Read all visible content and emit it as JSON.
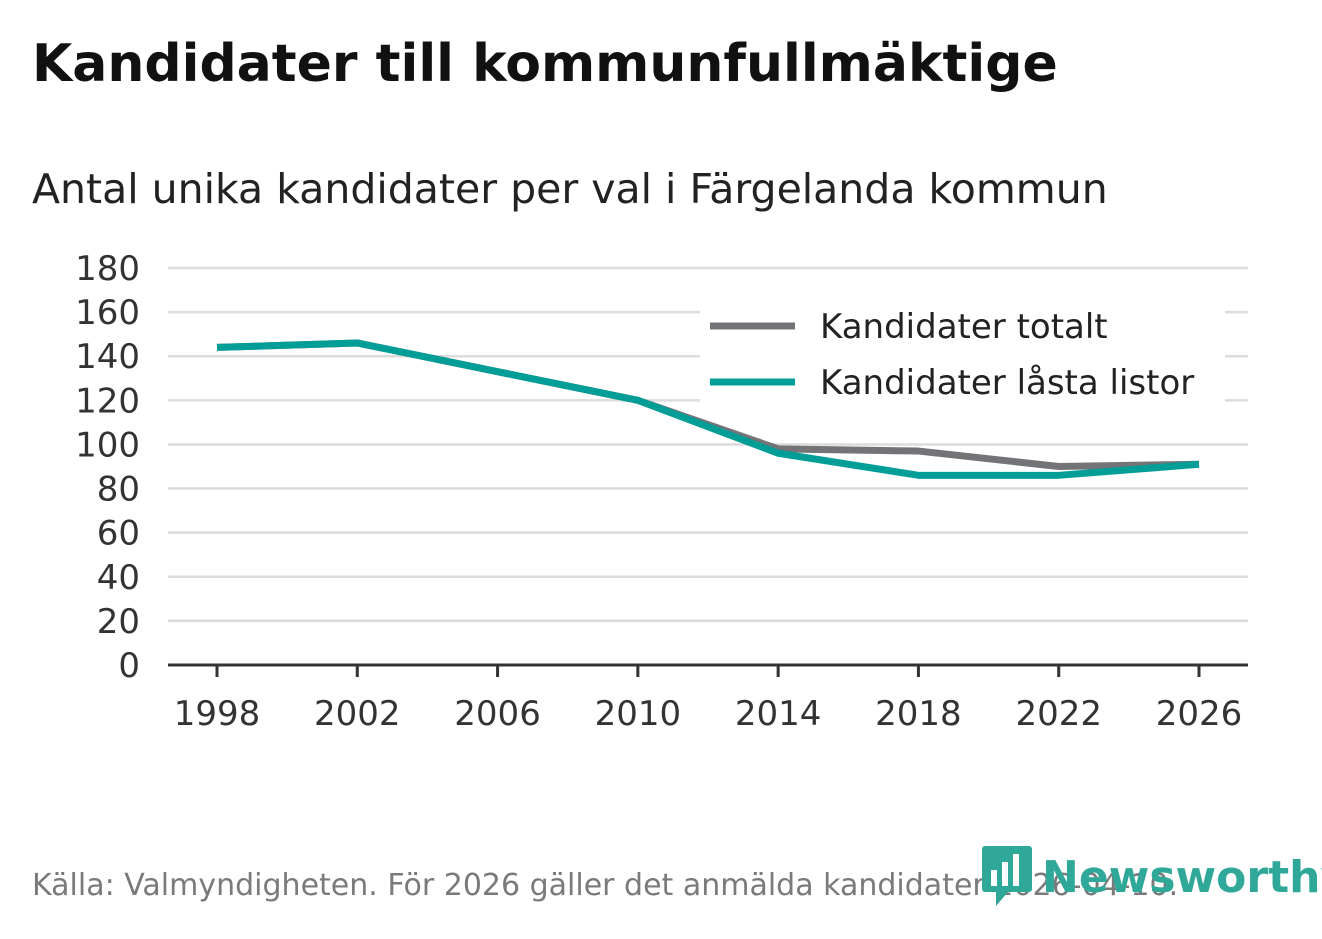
{
  "chart_data": {
    "type": "line",
    "title": "Kandidater till kommunfullmäktige",
    "subtitle": "Antal unika kandidater per val i Färgelanda kommun",
    "xlabel": "",
    "ylabel": "",
    "x": [
      "1998",
      "2002",
      "2006",
      "2010",
      "2014",
      "2018",
      "2022",
      "2026"
    ],
    "ylim": [
      0,
      180
    ],
    "yticks": [
      0,
      20,
      40,
      60,
      80,
      100,
      120,
      140,
      160,
      180
    ],
    "grid": true,
    "legend_position": "top-right",
    "series": [
      {
        "name": "Kandidater totalt",
        "color": "#747378",
        "values": [
          144,
          146,
          133,
          120,
          98,
          97,
          90,
          91
        ]
      },
      {
        "name": "Kandidater låsta listor",
        "color": "#009e96",
        "values": [
          144,
          146,
          133,
          120,
          96,
          86,
          86,
          91
        ]
      }
    ]
  },
  "footer": {
    "source": "Källa: Valmyndigheten. För 2026 gäller det anmälda kandidater 2026-04-10.",
    "brand": "Newsworthy"
  },
  "colors": {
    "brand": "#2fa89a",
    "grid": "#dcdcdc",
    "axis": "#333333"
  }
}
